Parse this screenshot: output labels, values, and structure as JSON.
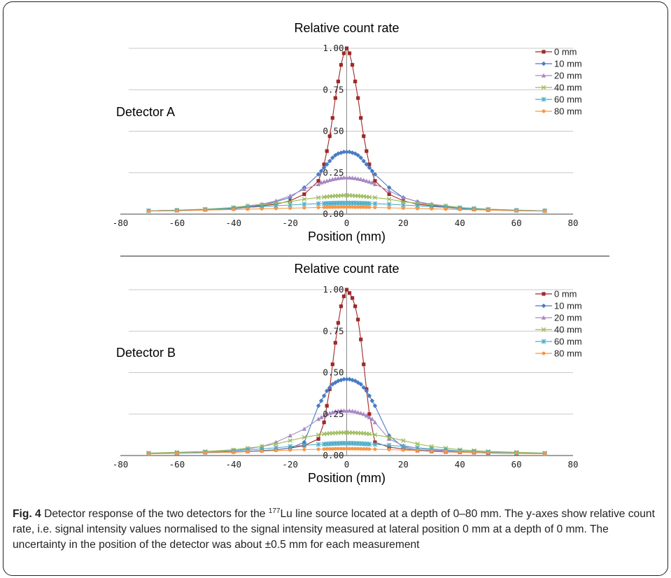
{
  "caption": {
    "label": "Fig. 4",
    "pre": "Detector response of the two detectors for the ",
    "isotope_mass": "177",
    "isotope_symbol": "Lu",
    "post": " line source located at a depth of 0–80 mm. The y-axes show relative count rate, i.e. signal intensity values normalised to the signal intensity measured at lateral position 0 mm at a depth of 0 mm. The uncertainty in the position of the detector was about ±0.5 mm for each measurement"
  },
  "series_colors": [
    "#9e2a28",
    "#4a7bc4",
    "#a889c2",
    "#9bbb59",
    "#4bacc6",
    "#f79646"
  ],
  "series_markers": [
    "square",
    "diamond",
    "triangle",
    "x",
    "star",
    "circle"
  ],
  "chart_data": [
    {
      "type": "line",
      "title": "Relative count rate",
      "panel_label": "Detector A",
      "xlabel": "Position (mm)",
      "ylabel": "",
      "xlim": [
        -80,
        80
      ],
      "ylim": [
        0,
        1
      ],
      "xticks": [
        "-80",
        "-60",
        "-40",
        "-20",
        "0",
        "20",
        "40",
        "60",
        "80"
      ],
      "yticks": [
        "0.00",
        "0.25",
        "0.50",
        "0.75",
        "1.00"
      ],
      "grid": "horizontal",
      "legend": "top-right",
      "series": [
        {
          "name": "0 mm",
          "x": [
            -70,
            -60,
            -50,
            -40,
            -35,
            -30,
            -25,
            -20,
            -15,
            -10,
            -8,
            -7,
            -6,
            -5,
            -4,
            -3,
            -2,
            -1,
            0,
            1,
            2,
            3,
            4,
            5,
            6,
            7,
            8,
            10,
            15,
            20,
            25,
            30,
            35,
            40,
            45,
            50,
            60,
            70
          ],
          "y": [
            0.02,
            0.023,
            0.026,
            0.033,
            0.04,
            0.05,
            0.06,
            0.08,
            0.12,
            0.2,
            0.3,
            0.38,
            0.47,
            0.58,
            0.7,
            0.8,
            0.9,
            0.97,
            1.0,
            0.97,
            0.9,
            0.8,
            0.7,
            0.58,
            0.47,
            0.38,
            0.3,
            0.2,
            0.12,
            0.08,
            0.06,
            0.05,
            0.04,
            0.033,
            0.028,
            0.025,
            0.022,
            0.02
          ]
        },
        {
          "name": "10 mm",
          "x": [
            -70,
            -60,
            -50,
            -40,
            -35,
            -30,
            -25,
            -20,
            -15,
            -10,
            -9,
            -8,
            -7,
            -6,
            -5,
            -4,
            -3,
            -2,
            -1,
            0,
            1,
            2,
            3,
            4,
            5,
            6,
            7,
            8,
            9,
            10,
            15,
            20,
            25,
            30,
            35,
            40,
            45,
            50,
            60,
            70
          ],
          "y": [
            0.02,
            0.023,
            0.027,
            0.035,
            0.045,
            0.055,
            0.075,
            0.1,
            0.16,
            0.24,
            0.26,
            0.28,
            0.3,
            0.32,
            0.34,
            0.355,
            0.365,
            0.37,
            0.375,
            0.375,
            0.375,
            0.37,
            0.365,
            0.355,
            0.34,
            0.32,
            0.3,
            0.28,
            0.26,
            0.24,
            0.16,
            0.1,
            0.075,
            0.055,
            0.045,
            0.035,
            0.03,
            0.025,
            0.022,
            0.02
          ]
        },
        {
          "name": "20 mm",
          "x": [
            -70,
            -60,
            -50,
            -40,
            -35,
            -30,
            -25,
            -20,
            -15,
            -10,
            -9,
            -8,
            -7,
            -6,
            -5,
            -4,
            -3,
            -2,
            -1,
            0,
            1,
            2,
            3,
            4,
            5,
            6,
            7,
            8,
            9,
            10,
            15,
            20,
            25,
            30,
            35,
            40,
            45,
            50,
            60,
            70
          ],
          "y": [
            0.02,
            0.024,
            0.03,
            0.04,
            0.05,
            0.06,
            0.08,
            0.11,
            0.15,
            0.18,
            0.19,
            0.195,
            0.2,
            0.205,
            0.21,
            0.213,
            0.216,
            0.218,
            0.22,
            0.22,
            0.22,
            0.218,
            0.216,
            0.213,
            0.21,
            0.205,
            0.2,
            0.195,
            0.19,
            0.18,
            0.14,
            0.1,
            0.075,
            0.06,
            0.05,
            0.04,
            0.035,
            0.03,
            0.024,
            0.02
          ]
        },
        {
          "name": "40 mm",
          "x": [
            -70,
            -60,
            -50,
            -40,
            -35,
            -30,
            -25,
            -20,
            -15,
            -10,
            -8,
            -7,
            -6,
            -5,
            -4,
            -3,
            -2,
            -1,
            0,
            1,
            2,
            3,
            4,
            5,
            6,
            7,
            8,
            10,
            15,
            20,
            25,
            30,
            35,
            40,
            45,
            50,
            60,
            70
          ],
          "y": [
            0.02,
            0.024,
            0.03,
            0.04,
            0.05,
            0.057,
            0.065,
            0.075,
            0.09,
            0.1,
            0.103,
            0.105,
            0.107,
            0.108,
            0.11,
            0.11,
            0.112,
            0.113,
            0.113,
            0.113,
            0.112,
            0.11,
            0.11,
            0.108,
            0.107,
            0.105,
            0.103,
            0.1,
            0.09,
            0.075,
            0.065,
            0.057,
            0.05,
            0.04,
            0.035,
            0.03,
            0.024,
            0.02
          ]
        },
        {
          "name": "60 mm",
          "x": [
            -70,
            -60,
            -50,
            -40,
            -35,
            -30,
            -25,
            -20,
            -15,
            -10,
            -8,
            -7,
            -6,
            -5,
            -4,
            -3,
            -2,
            -1,
            0,
            1,
            2,
            3,
            4,
            5,
            6,
            7,
            8,
            10,
            15,
            20,
            25,
            30,
            35,
            40,
            45,
            50,
            60,
            70
          ],
          "y": [
            0.02,
            0.023,
            0.028,
            0.035,
            0.04,
            0.045,
            0.05,
            0.055,
            0.06,
            0.063,
            0.064,
            0.065,
            0.065,
            0.066,
            0.066,
            0.067,
            0.067,
            0.067,
            0.067,
            0.067,
            0.067,
            0.067,
            0.066,
            0.066,
            0.065,
            0.065,
            0.064,
            0.063,
            0.06,
            0.055,
            0.05,
            0.045,
            0.04,
            0.035,
            0.032,
            0.028,
            0.023,
            0.02
          ]
        },
        {
          "name": "80 mm",
          "x": [
            -70,
            -60,
            -50,
            -40,
            -35,
            -30,
            -25,
            -20,
            -15,
            -10,
            -8,
            -7,
            -6,
            -5,
            -4,
            -3,
            -2,
            -1,
            0,
            1,
            2,
            3,
            4,
            5,
            6,
            7,
            8,
            10,
            15,
            20,
            25,
            30,
            35,
            40,
            45,
            50,
            60,
            70
          ],
          "y": [
            0.018,
            0.02,
            0.024,
            0.028,
            0.03,
            0.032,
            0.034,
            0.036,
            0.038,
            0.04,
            0.041,
            0.041,
            0.042,
            0.042,
            0.042,
            0.042,
            0.043,
            0.043,
            0.043,
            0.043,
            0.043,
            0.042,
            0.042,
            0.042,
            0.042,
            0.041,
            0.041,
            0.04,
            0.038,
            0.036,
            0.034,
            0.032,
            0.03,
            0.028,
            0.026,
            0.024,
            0.02,
            0.018
          ]
        }
      ]
    },
    {
      "type": "line",
      "title": "Relative count rate",
      "panel_label": "Detector B",
      "xlabel": "Position (mm)",
      "ylabel": "",
      "xlim": [
        -80,
        80
      ],
      "ylim": [
        0,
        1
      ],
      "xticks": [
        "-80",
        "-60",
        "-40",
        "-20",
        "0",
        "20",
        "40",
        "60",
        "80"
      ],
      "yticks": [
        "0.00",
        "0.25",
        "0.50",
        "0.75",
        "1.00"
      ],
      "grid": "horizontal",
      "legend": "top-right",
      "series": [
        {
          "name": "0 mm",
          "x": [
            -70,
            -60,
            -50,
            -40,
            -35,
            -30,
            -25,
            -20,
            -15,
            -10,
            -8,
            -7,
            -6,
            -5,
            -4,
            -3,
            -2,
            -1,
            0,
            1,
            2,
            3,
            4,
            5,
            6,
            7,
            8,
            10,
            15,
            20,
            25,
            30,
            35,
            40,
            45,
            50,
            60,
            70
          ],
          "y": [
            0.012,
            0.015,
            0.018,
            0.022,
            0.025,
            0.03,
            0.035,
            0.045,
            0.06,
            0.1,
            0.2,
            0.3,
            0.4,
            0.55,
            0.68,
            0.8,
            0.9,
            0.96,
            1.0,
            0.98,
            0.95,
            0.9,
            0.82,
            0.7,
            0.55,
            0.4,
            0.25,
            0.08,
            0.05,
            0.04,
            0.03,
            0.025,
            0.022,
            0.02,
            0.018,
            0.015,
            0.013,
            0.012
          ]
        },
        {
          "name": "10 mm",
          "x": [
            -70,
            -60,
            -50,
            -40,
            -35,
            -30,
            -25,
            -20,
            -15,
            -10,
            -9,
            -8,
            -7,
            -6,
            -5,
            -4,
            -3,
            -2,
            -1,
            0,
            1,
            2,
            3,
            4,
            5,
            6,
            7,
            8,
            9,
            10,
            15,
            20,
            25,
            30,
            35,
            40,
            45,
            50,
            60,
            70
          ],
          "y": [
            0.012,
            0.015,
            0.018,
            0.022,
            0.026,
            0.03,
            0.035,
            0.045,
            0.08,
            0.3,
            0.33,
            0.36,
            0.39,
            0.41,
            0.43,
            0.44,
            0.45,
            0.455,
            0.46,
            0.46,
            0.46,
            0.455,
            0.45,
            0.44,
            0.43,
            0.41,
            0.39,
            0.36,
            0.33,
            0.3,
            0.12,
            0.05,
            0.035,
            0.03,
            0.026,
            0.022,
            0.02,
            0.018,
            0.015,
            0.012
          ]
        },
        {
          "name": "20 mm",
          "x": [
            -70,
            -60,
            -50,
            -40,
            -35,
            -30,
            -25,
            -20,
            -15,
            -10,
            -9,
            -8,
            -7,
            -6,
            -5,
            -4,
            -3,
            -2,
            -1,
            0,
            1,
            2,
            3,
            4,
            5,
            6,
            7,
            8,
            9,
            10,
            15,
            20,
            25,
            30,
            35,
            40,
            45,
            50,
            60,
            70
          ],
          "y": [
            0.012,
            0.015,
            0.02,
            0.03,
            0.04,
            0.055,
            0.08,
            0.12,
            0.16,
            0.22,
            0.23,
            0.24,
            0.25,
            0.255,
            0.26,
            0.265,
            0.268,
            0.27,
            0.27,
            0.27,
            0.27,
            0.268,
            0.265,
            0.26,
            0.255,
            0.25,
            0.24,
            0.23,
            0.22,
            0.2,
            0.1,
            0.06,
            0.045,
            0.035,
            0.03,
            0.025,
            0.022,
            0.02,
            0.015,
            0.012
          ]
        },
        {
          "name": "40 mm",
          "x": [
            -70,
            -60,
            -50,
            -40,
            -35,
            -30,
            -25,
            -20,
            -15,
            -10,
            -8,
            -7,
            -6,
            -5,
            -4,
            -3,
            -2,
            -1,
            0,
            1,
            2,
            3,
            4,
            5,
            6,
            7,
            8,
            10,
            15,
            20,
            25,
            30,
            35,
            40,
            45,
            50,
            60,
            70
          ],
          "y": [
            0.015,
            0.02,
            0.025,
            0.035,
            0.045,
            0.055,
            0.07,
            0.09,
            0.11,
            0.125,
            0.13,
            0.132,
            0.134,
            0.135,
            0.136,
            0.137,
            0.138,
            0.138,
            0.138,
            0.138,
            0.138,
            0.137,
            0.136,
            0.135,
            0.134,
            0.132,
            0.13,
            0.125,
            0.11,
            0.09,
            0.07,
            0.055,
            0.045,
            0.035,
            0.03,
            0.025,
            0.02,
            0.015
          ]
        },
        {
          "name": "60 mm",
          "x": [
            -70,
            -60,
            -50,
            -40,
            -35,
            -30,
            -25,
            -20,
            -15,
            -10,
            -8,
            -7,
            -6,
            -5,
            -4,
            -3,
            -2,
            -1,
            0,
            1,
            2,
            3,
            4,
            5,
            6,
            7,
            8,
            10,
            15,
            20,
            25,
            30,
            35,
            40,
            45,
            50,
            60,
            70
          ],
          "y": [
            0.012,
            0.015,
            0.02,
            0.028,
            0.035,
            0.04,
            0.047,
            0.055,
            0.062,
            0.067,
            0.069,
            0.07,
            0.071,
            0.072,
            0.073,
            0.073,
            0.074,
            0.074,
            0.074,
            0.074,
            0.074,
            0.073,
            0.073,
            0.072,
            0.071,
            0.07,
            0.069,
            0.067,
            0.062,
            0.055,
            0.047,
            0.04,
            0.035,
            0.028,
            0.024,
            0.02,
            0.015,
            0.012
          ]
        },
        {
          "name": "80 mm",
          "x": [
            -70,
            -60,
            -50,
            -40,
            -35,
            -30,
            -25,
            -20,
            -15,
            -10,
            -8,
            -7,
            -6,
            -5,
            -4,
            -3,
            -2,
            -1,
            0,
            1,
            2,
            3,
            4,
            5,
            6,
            7,
            8,
            10,
            15,
            20,
            25,
            30,
            35,
            40,
            45,
            50,
            60,
            70
          ],
          "y": [
            0.01,
            0.013,
            0.016,
            0.02,
            0.023,
            0.026,
            0.03,
            0.033,
            0.036,
            0.038,
            0.039,
            0.04,
            0.04,
            0.04,
            0.041,
            0.041,
            0.041,
            0.041,
            0.041,
            0.041,
            0.041,
            0.041,
            0.041,
            0.04,
            0.04,
            0.04,
            0.039,
            0.038,
            0.036,
            0.033,
            0.03,
            0.026,
            0.023,
            0.02,
            0.018,
            0.016,
            0.013,
            0.01
          ]
        }
      ]
    }
  ]
}
